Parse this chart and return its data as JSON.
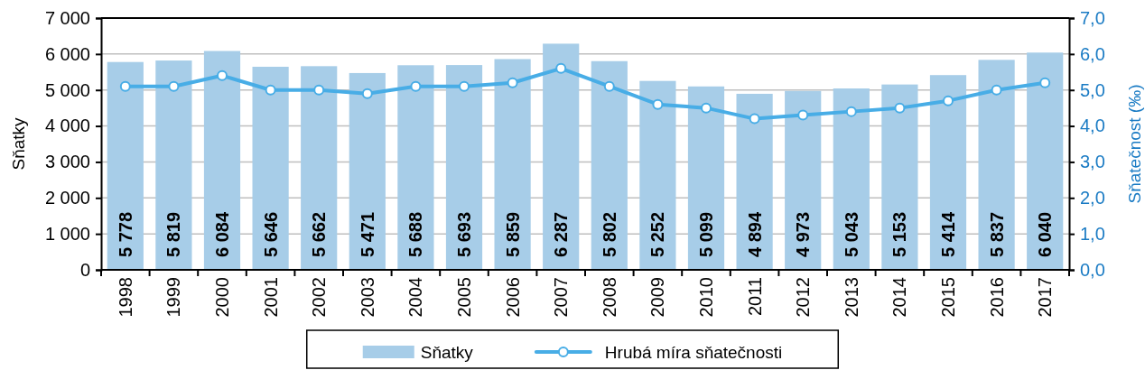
{
  "chart_data": {
    "type": "bar",
    "categories": [
      "1998",
      "1999",
      "2000",
      "2001",
      "2002",
      "2003",
      "2004",
      "2005",
      "2006",
      "2007",
      "2008",
      "2009",
      "2010",
      "2011",
      "2012",
      "2013",
      "2014",
      "2015",
      "2016",
      "2017"
    ],
    "series": [
      {
        "name": "Sňatky",
        "color": "#a7cde8",
        "values": [
          5778,
          5819,
          6084,
          5646,
          5662,
          5471,
          5688,
          5693,
          5859,
          6287,
          5802,
          5252,
          5099,
          4894,
          4973,
          5043,
          5153,
          5414,
          5837,
          6040
        ],
        "value_labels": [
          "5 778",
          "5 819",
          "6 084",
          "5 646",
          "5 662",
          "5 471",
          "5 688",
          "5 693",
          "5 859",
          "6 287",
          "5 802",
          "5 252",
          "5 099",
          "4 894",
          "4 973",
          "5 043",
          "5 153",
          "5 414",
          "5 837",
          "6 040"
        ]
      },
      {
        "name": "Hrubá míra sňatečnosti",
        "type": "line",
        "axis": "y2",
        "color": "#48ade6",
        "values": [
          5.1,
          5.1,
          5.4,
          5.0,
          5.0,
          4.9,
          5.1,
          5.1,
          5.2,
          5.6,
          5.1,
          4.6,
          4.5,
          4.2,
          4.3,
          4.4,
          4.5,
          4.7,
          5.0,
          5.2
        ]
      }
    ],
    "ylabel": "Sňatky",
    "y2label": "Sňatečnost (‰)",
    "ylim": [
      0,
      7000
    ],
    "yticks": [
      0,
      {
        "value": 1000,
        "label": "1 000"
      },
      {
        "value": 2000,
        "label": "2 000"
      },
      {
        "value": 3000,
        "label": "3 000"
      },
      {
        "value": 4000,
        "label": "4 000"
      },
      {
        "value": 5000,
        "label": "5 000"
      },
      {
        "value": 6000,
        "label": "6 000"
      },
      {
        "value": 7000,
        "label": "7 000"
      }
    ],
    "y2lim": [
      0,
      7
    ],
    "y2ticks": [
      {
        "value": 0,
        "label": "0,0"
      },
      {
        "value": 1,
        "label": "1,0"
      },
      {
        "value": 2,
        "label": "2,0"
      },
      {
        "value": 3,
        "label": "3,0"
      },
      {
        "value": 4,
        "label": "4,0"
      },
      {
        "value": 5,
        "label": "5,0"
      },
      {
        "value": 6,
        "label": "6,0"
      },
      {
        "value": 7,
        "label": "7,0"
      }
    ],
    "grid": "y",
    "legend": "bottom",
    "marker": "circle"
  }
}
